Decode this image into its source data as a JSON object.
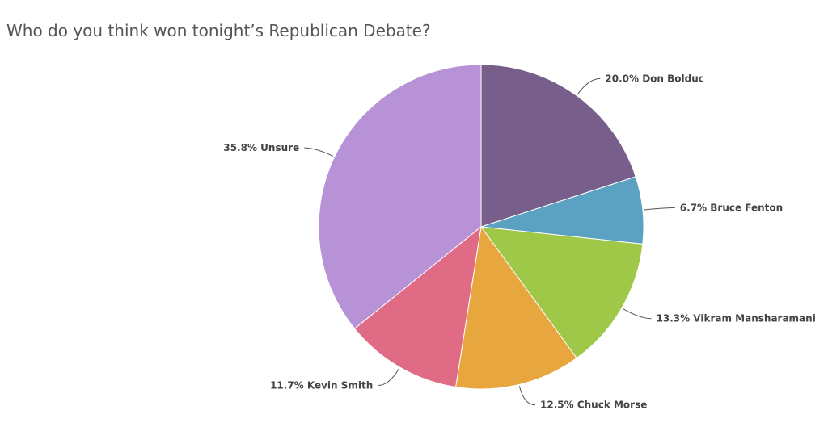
{
  "chart_data": {
    "type": "pie",
    "title": "Who do you think won tonight’s Republican Debate?",
    "slices": [
      {
        "label": "20.0% Don Bolduc",
        "value": 20.0,
        "color": "#785e8a"
      },
      {
        "label": "6.7% Bruce Fenton",
        "value": 6.7,
        "color": "#5ba1c2"
      },
      {
        "label": "13.3% Vikram Mansharamani",
        "value": 13.3,
        "color": "#9fc748"
      },
      {
        "label": "12.5% Chuck Morse",
        "value": 12.5,
        "color": "#e8a63f"
      },
      {
        "label": "11.7% Kevin Smith",
        "value": 11.7,
        "color": "#df6b84"
      },
      {
        "label": "35.8% Unsure",
        "value": 35.8,
        "color": "#b792d6"
      }
    ]
  }
}
